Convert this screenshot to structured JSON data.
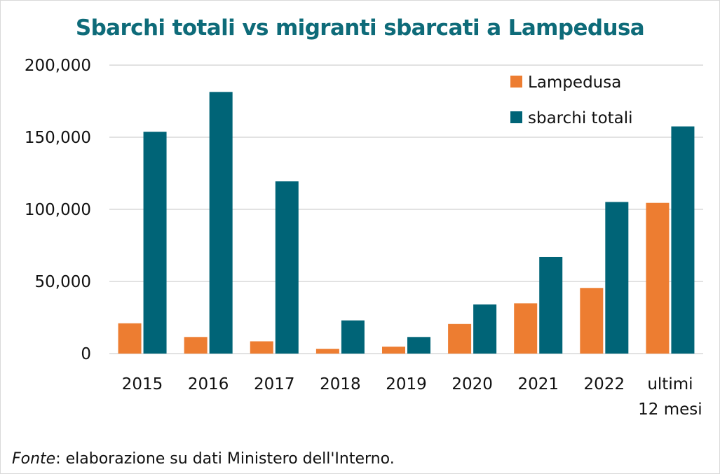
{
  "chart_data": {
    "type": "bar",
    "title": "Sbarchi totali vs migranti sbarcati a Lampedusa",
    "categories": [
      "2015",
      "2016",
      "2017",
      "2018",
      "2019",
      "2020",
      "2021",
      "2022",
      "ultimi|12 mesi"
    ],
    "series": [
      {
        "name": "Lampedusa",
        "color": "#ed7d31",
        "values": [
          21000,
          11500,
          8500,
          3300,
          4800,
          20500,
          34800,
          45500,
          104500
        ]
      },
      {
        "name": "sbarchi totali",
        "color": "#006477",
        "values": [
          153800,
          181400,
          119400,
          23000,
          11500,
          34100,
          67000,
          105100,
          157500
        ]
      }
    ],
    "ylim": [
      0,
      200000
    ],
    "yticks": [
      0,
      50000,
      100000,
      150000,
      200000
    ],
    "ytick_labels": [
      "0",
      "50,000",
      "100,000",
      "150,000",
      "200,000"
    ],
    "xlabel": "",
    "ylabel": "",
    "grid": true,
    "legend_position": "top-right"
  },
  "source": {
    "label": "Fonte",
    "text": ": elaborazione su dati Ministero dell'Interno."
  }
}
